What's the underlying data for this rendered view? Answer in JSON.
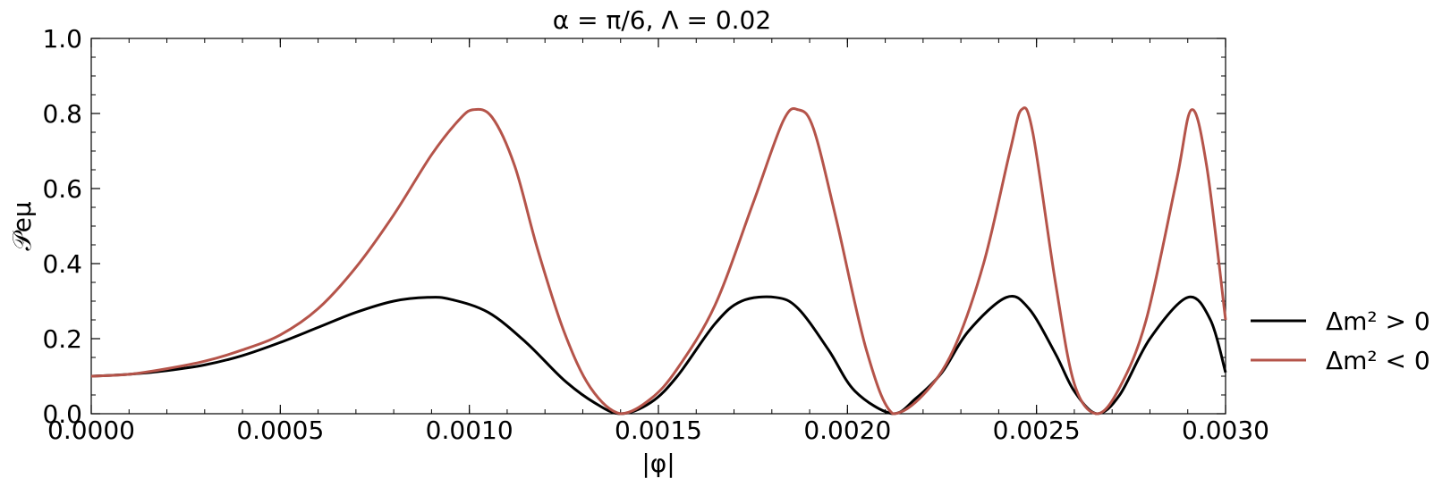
{
  "chart_data": {
    "type": "line",
    "title": "α = π/6, Λ = 0.02",
    "xlabel": "|φ|",
    "ylabel": "𝒫eμ",
    "xlim": [
      0,
      0.003
    ],
    "ylim": [
      0,
      1.0
    ],
    "xticks": [
      "0.0000",
      "0.0005",
      "0.0010",
      "0.0015",
      "0.0020",
      "0.0025",
      "0.0030"
    ],
    "yticks": [
      "0.0",
      "0.2",
      "0.4",
      "0.6",
      "0.8",
      "1.0"
    ],
    "grid": false,
    "legend_position": "outside-right-bottom",
    "series": [
      {
        "name": "Δm² > 0",
        "color": "#000000",
        "x": [
          0,
          0.0001,
          0.0002,
          0.0003,
          0.0004,
          0.0005,
          0.0006,
          0.0007,
          0.0008,
          0.00089,
          0.00095,
          0.00105,
          0.00115,
          0.00125,
          0.00133,
          0.0014,
          0.00148,
          0.00155,
          0.00165,
          0.00172,
          0.00181,
          0.00187,
          0.00195,
          0.00202,
          0.00212,
          0.00218,
          0.00225,
          0.00232,
          0.00242,
          0.00248,
          0.00255,
          0.0026,
          0.00266,
          0.00272,
          0.0028,
          0.0029,
          0.00296,
          0.003
        ],
        "y": [
          0.1,
          0.105,
          0.115,
          0.13,
          0.155,
          0.19,
          0.23,
          0.27,
          0.3,
          0.31,
          0.305,
          0.27,
          0.19,
          0.09,
          0.03,
          0.0,
          0.03,
          0.1,
          0.24,
          0.3,
          0.31,
          0.28,
          0.17,
          0.06,
          0.0,
          0.04,
          0.11,
          0.22,
          0.31,
          0.28,
          0.16,
          0.06,
          0.0,
          0.05,
          0.2,
          0.31,
          0.25,
          0.11
        ]
      },
      {
        "name": "Δm² < 0",
        "color": "#b5544a",
        "x": [
          0,
          0.0001,
          0.0002,
          0.0003,
          0.0004,
          0.0005,
          0.0006,
          0.0007,
          0.0008,
          0.0009,
          0.00097,
          0.00101,
          0.00106,
          0.00112,
          0.00118,
          0.00125,
          0.00132,
          0.0014,
          0.00148,
          0.00155,
          0.00165,
          0.00175,
          0.00183,
          0.00187,
          0.00191,
          0.00197,
          0.00205,
          0.00212,
          0.0022,
          0.00228,
          0.00236,
          0.00243,
          0.00246,
          0.00249,
          0.00255,
          0.0026,
          0.00266,
          0.00272,
          0.00279,
          0.00287,
          0.00291,
          0.00295,
          0.003
        ],
        "y": [
          0.1,
          0.105,
          0.12,
          0.14,
          0.17,
          0.21,
          0.28,
          0.39,
          0.53,
          0.69,
          0.78,
          0.81,
          0.79,
          0.66,
          0.44,
          0.22,
          0.07,
          0.0,
          0.04,
          0.12,
          0.29,
          0.56,
          0.78,
          0.81,
          0.76,
          0.52,
          0.17,
          0.0,
          0.05,
          0.17,
          0.4,
          0.7,
          0.81,
          0.75,
          0.35,
          0.08,
          0.0,
          0.07,
          0.25,
          0.62,
          0.81,
          0.66,
          0.25
        ]
      }
    ]
  }
}
